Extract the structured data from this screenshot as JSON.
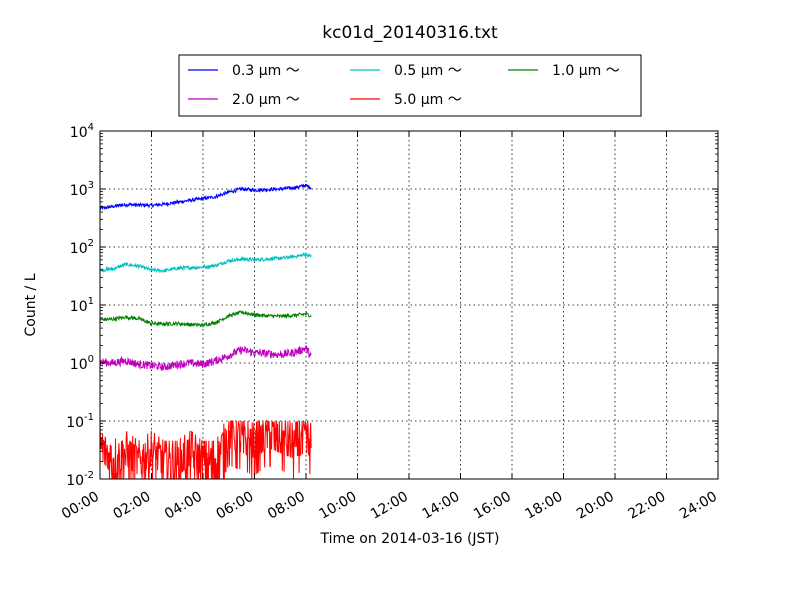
{
  "chart_data": {
    "type": "line",
    "title": "kc01d_20140316.txt",
    "xlabel": "Time on 2014-03-16 (JST)",
    "ylabel": "Count / L",
    "yscale": "log",
    "ylim": [
      0.01,
      10000
    ],
    "xlim": [
      "00:00",
      "24:00"
    ],
    "x_ticks": [
      "00:00",
      "02:00",
      "04:00",
      "06:00",
      "08:00",
      "10:00",
      "12:00",
      "14:00",
      "16:00",
      "18:00",
      "20:00",
      "22:00",
      "24:00"
    ],
    "y_ticks": [
      {
        "value": 0.01,
        "base": "10",
        "exp": "-2"
      },
      {
        "value": 0.1,
        "base": "10",
        "exp": "-1"
      },
      {
        "value": 1,
        "base": "10",
        "exp": "0"
      },
      {
        "value": 10,
        "base": "10",
        "exp": "1"
      },
      {
        "value": 100,
        "base": "10",
        "exp": "2"
      },
      {
        "value": 1000,
        "base": "10",
        "exp": "3"
      },
      {
        "value": 10000,
        "base": "10",
        "exp": "4"
      }
    ],
    "grid": true,
    "legend_position": "top-center",
    "x_hours": [
      0,
      0.5,
      1,
      1.5,
      2,
      2.5,
      3,
      3.5,
      4,
      4.5,
      5,
      5.5,
      6,
      6.5,
      7,
      7.5,
      8,
      8.2
    ],
    "series": [
      {
        "name": "0.3 μm ～",
        "color": "#0000ff",
        "values": [
          460,
          500,
          540,
          530,
          520,
          550,
          590,
          640,
          680,
          740,
          880,
          1000,
          960,
          980,
          1000,
          1050,
          1150,
          1050
        ]
      },
      {
        "name": "0.5 μm ～",
        "color": "#00bfbf",
        "values": [
          40,
          42,
          50,
          47,
          40,
          39,
          43,
          44,
          45,
          48,
          58,
          62,
          60,
          62,
          64,
          68,
          74,
          70
        ]
      },
      {
        "name": "1.0 μm ～",
        "color": "#008000",
        "values": [
          5.6,
          5.7,
          6.2,
          5.8,
          4.8,
          4.7,
          4.8,
          4.6,
          4.5,
          5.0,
          6.5,
          7.5,
          6.8,
          6.5,
          6.4,
          6.6,
          7.0,
          6.5
        ]
      },
      {
        "name": "2.0 μm ～",
        "color": "#bf00bf",
        "values": [
          1.05,
          1.0,
          1.1,
          0.95,
          0.9,
          0.85,
          0.95,
          1.0,
          0.95,
          1.1,
          1.35,
          1.7,
          1.5,
          1.45,
          1.4,
          1.5,
          1.8,
          1.3
        ]
      },
      {
        "name": "5.0 μm ～",
        "color": "#ff0000",
        "values": [
          0.04,
          0.02,
          0.03,
          0.02,
          0.03,
          0.02,
          0.02,
          0.03,
          0.02,
          0.02,
          0.06,
          0.05,
          0.04,
          0.06,
          0.05,
          0.04,
          0.05,
          0.04
        ]
      }
    ]
  }
}
